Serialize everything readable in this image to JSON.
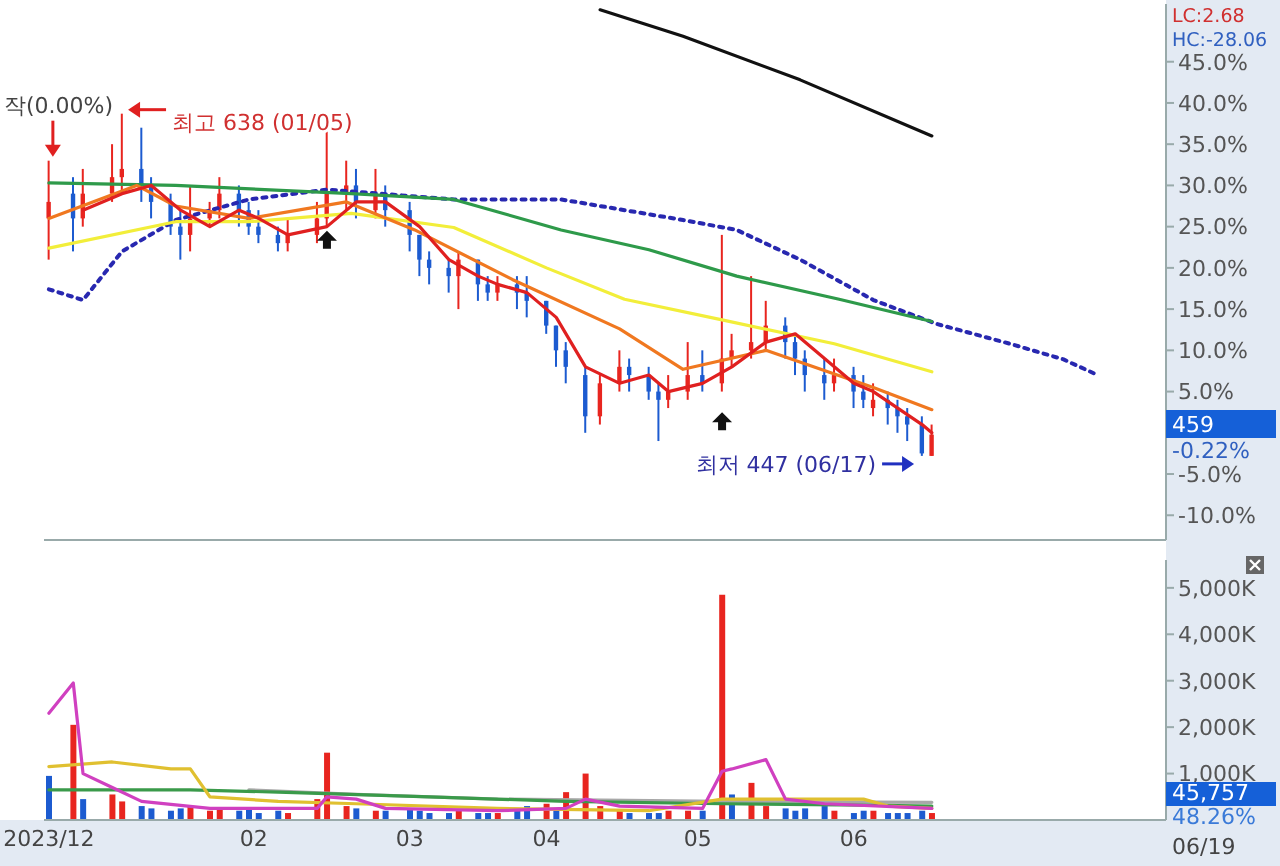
{
  "chart_data": [
    {
      "type": "candlestick",
      "x": [
        "2023-12-21",
        "2023-12-26",
        "2023-12-28",
        "2024-01-03",
        "2024-01-05",
        "2024-01-09",
        "2024-01-11",
        "2024-01-15",
        "2024-01-17",
        "2024-01-19",
        "2024-01-23",
        "2024-01-25",
        "2024-01-29",
        "2024-01-31",
        "2024-02-02",
        "2024-02-06",
        "2024-02-08",
        "2024-02-14",
        "2024-02-16",
        "2024-02-20",
        "2024-02-22",
        "2024-02-26",
        "2024-02-28",
        "2024-03-04",
        "2024-03-06",
        "2024-03-08",
        "2024-03-12",
        "2024-03-14",
        "2024-03-18",
        "2024-03-20",
        "2024-03-22",
        "2024-03-26",
        "2024-03-28",
        "2024-04-01",
        "2024-04-03",
        "2024-04-05",
        "2024-04-09",
        "2024-04-12",
        "2024-04-16",
        "2024-04-18",
        "2024-04-22",
        "2024-04-24",
        "2024-04-26",
        "2024-04-30",
        "2024-05-03",
        "2024-05-07",
        "2024-05-09",
        "2024-05-13",
        "2024-05-16",
        "2024-05-20",
        "2024-05-22",
        "2024-05-24",
        "2024-05-28",
        "2024-05-30",
        "2024-06-03",
        "2024-06-05",
        "2024-06-07",
        "2024-06-10",
        "2024-06-12",
        "2024-06-14",
        "2024-06-17",
        "2024-06-19"
      ],
      "ohlc": [
        [
          26,
          33,
          21,
          28
        ],
        [
          29,
          31,
          22,
          26
        ],
        [
          26,
          32,
          25,
          29
        ],
        [
          29,
          35,
          28,
          31
        ],
        [
          31,
          38.7,
          29,
          32
        ],
        [
          32,
          37,
          28,
          30
        ],
        [
          30,
          31,
          26,
          28
        ],
        [
          28,
          29,
          24,
          25
        ],
        [
          25,
          27,
          21,
          24
        ],
        [
          24,
          30,
          22,
          26
        ],
        [
          26,
          28,
          25,
          27
        ],
        [
          27,
          31,
          26,
          29
        ],
        [
          29,
          30,
          25,
          27
        ],
        [
          27,
          28,
          24,
          25
        ],
        [
          25,
          27,
          23,
          24
        ],
        [
          24,
          25,
          22,
          23
        ],
        [
          23,
          26,
          22,
          24
        ],
        [
          24,
          28,
          23,
          26
        ],
        [
          26,
          38,
          25,
          29
        ],
        [
          29,
          33,
          27,
          30
        ],
        [
          30,
          32,
          26,
          28
        ],
        [
          27,
          32,
          26,
          29
        ],
        [
          29,
          30,
          25,
          27
        ],
        [
          27,
          28,
          22,
          24
        ],
        [
          24,
          24,
          19,
          21
        ],
        [
          21,
          22,
          18,
          20
        ],
        [
          20,
          21,
          17,
          19
        ],
        [
          19,
          22,
          15,
          21
        ],
        [
          21,
          21,
          16,
          18
        ],
        [
          18,
          19,
          16,
          17
        ],
        [
          17,
          19,
          16,
          18
        ],
        [
          18,
          19,
          15,
          17
        ],
        [
          17,
          19,
          14,
          16
        ],
        [
          16,
          16,
          12,
          13
        ],
        [
          13,
          13,
          8,
          10
        ],
        [
          10,
          11,
          6,
          8
        ],
        [
          7,
          8,
          0,
          2
        ],
        [
          2,
          7,
          1,
          6
        ],
        [
          6,
          10,
          5,
          8
        ],
        [
          8,
          9,
          5,
          7
        ],
        [
          7,
          8,
          4,
          5
        ],
        [
          5,
          6,
          -1,
          4
        ],
        [
          4,
          7,
          3,
          5
        ],
        [
          5,
          11,
          4,
          7
        ],
        [
          7,
          10,
          5,
          6
        ],
        [
          6,
          24,
          5,
          9
        ],
        [
          9,
          12,
          8,
          10
        ],
        [
          10,
          19,
          9,
          11
        ],
        [
          11,
          16,
          10,
          13
        ],
        [
          13,
          14,
          9,
          11
        ],
        [
          11,
          12,
          7,
          9
        ],
        [
          9,
          10,
          5,
          7
        ],
        [
          7,
          9,
          4,
          6
        ],
        [
          6,
          9,
          5,
          7
        ],
        [
          7,
          8,
          3,
          5
        ],
        [
          5,
          7,
          3,
          4
        ],
        [
          3,
          6,
          2,
          4
        ],
        [
          4,
          5,
          1,
          3
        ],
        [
          3,
          4,
          0,
          2
        ],
        [
          2,
          3,
          -1,
          1
        ],
        [
          1,
          2,
          -2.8,
          -2.5
        ],
        [
          -2.8,
          1,
          -2.8,
          -0.22
        ]
      ],
      "colors": [
        "#e8251f",
        "#1c5bd0",
        "#e8251f",
        "#e8251f",
        "#e8251f",
        "#1c5bd0",
        "#1c5bd0",
        "#1c5bd0",
        "#1c5bd0",
        "#e8251f",
        "#e8251f",
        "#e8251f",
        "#1c5bd0",
        "#1c5bd0",
        "#1c5bd0",
        "#1c5bd0",
        "#e8251f",
        "#e8251f",
        "#e8251f",
        "#e8251f",
        "#1c5bd0",
        "#e8251f",
        "#1c5bd0",
        "#1c5bd0",
        "#1c5bd0",
        "#1c5bd0",
        "#1c5bd0",
        "#e8251f",
        "#1c5bd0",
        "#1c5bd0",
        "#e8251f",
        "#1c5bd0",
        "#1c5bd0",
        "#1c5bd0",
        "#1c5bd0",
        "#1c5bd0",
        "#1c5bd0",
        "#e8251f",
        "#e8251f",
        "#1c5bd0",
        "#1c5bd0",
        "#1c5bd0",
        "#e8251f",
        "#e8251f",
        "#1c5bd0",
        "#e8251f",
        "#e8251f",
        "#e8251f",
        "#e8251f",
        "#1c5bd0",
        "#1c5bd0",
        "#1c5bd0",
        "#1c5bd0",
        "#e8251f",
        "#1c5bd0",
        "#1c5bd0",
        "#e8251f",
        "#1c5bd0",
        "#1c5bd0",
        "#1c5bd0",
        "#1c5bd0",
        "#e8251f"
      ],
      "series": [
        {
          "type": "line",
          "color": "#2828b0",
          "line_style": "dotted",
          "x": [
            "2023-12-21",
            "2023-12-28",
            "2024-01-05",
            "2024-01-16",
            "2024-01-31",
            "2024-02-16",
            "2024-03-13",
            "2024-04-04",
            "2024-04-29",
            "2024-05-10",
            "2024-05-23",
            "2024-06-07",
            "2024-06-20",
            "2024-07-05",
            "2024-07-16",
            "2024-07-23"
          ],
          "values": [
            17.4,
            16.1,
            22,
            25.8,
            28.3,
            29.5,
            28.3,
            28.3,
            25.8,
            24.6,
            21,
            16.1,
            13.2,
            10.8,
            8.9,
            7
          ]
        },
        {
          "type": "line",
          "color": "#111111",
          "x": [
            "2024-04-12",
            "2024-04-29",
            "2024-05-23",
            "2024-06-19"
          ],
          "values": [
            51.3,
            48.1,
            42.8,
            36
          ]
        },
        {
          "type": "line",
          "color": "#2e9a4a",
          "x": [
            "2023-12-21",
            "2024-01-16",
            "2024-02-21",
            "2024-03-13",
            "2024-04-04",
            "2024-04-22",
            "2024-05-10",
            "2024-05-31",
            "2024-06-19"
          ],
          "values": [
            30.3,
            30,
            29,
            28.3,
            24.6,
            22.2,
            19,
            16.2,
            13.5
          ]
        },
        {
          "type": "line",
          "color": "#f2ee3a",
          "x": [
            "2023-12-21",
            "2024-01-16",
            "2024-01-31",
            "2024-02-21",
            "2024-03-13",
            "2024-04-01",
            "2024-04-17",
            "2024-05-07",
            "2024-05-30",
            "2024-06-19"
          ],
          "values": [
            22.4,
            25.6,
            25.6,
            26.6,
            24.9,
            20,
            16.2,
            13.7,
            10.8,
            7.4
          ]
        },
        {
          "type": "line",
          "color": "#f07820",
          "x": [
            "2023-12-21",
            "2024-01-08",
            "2024-01-16",
            "2024-01-31",
            "2024-02-20",
            "2024-03-05",
            "2024-03-25",
            "2024-04-16",
            "2024-04-29",
            "2024-05-16",
            "2024-06-07",
            "2024-06-19"
          ],
          "values": [
            26,
            30,
            27.5,
            26,
            28,
            24.6,
            18.6,
            12.6,
            7.7,
            10,
            5.5,
            2.8
          ]
        },
        {
          "type": "line",
          "color": "#e02020",
          "x": [
            "2023-12-28",
            "2024-01-05",
            "2024-01-11",
            "2024-01-17",
            "2024-01-23",
            "2024-01-29",
            "2024-02-02",
            "2024-02-08",
            "2024-02-16",
            "2024-02-22",
            "2024-02-28",
            "2024-03-06",
            "2024-03-12",
            "2024-03-18",
            "2024-03-22",
            "2024-03-28",
            "2024-04-03",
            "2024-04-09",
            "2024-04-16",
            "2024-04-22",
            "2024-04-26",
            "2024-05-03",
            "2024-05-09",
            "2024-05-16",
            "2024-05-22",
            "2024-05-28",
            "2024-06-03",
            "2024-06-07",
            "2024-06-12",
            "2024-06-17",
            "2024-06-19"
          ],
          "values": [
            27,
            29,
            30,
            27,
            25,
            27,
            26,
            24,
            25,
            28,
            28,
            25,
            21,
            19,
            18,
            17,
            14,
            8,
            6,
            7,
            5,
            6,
            8,
            11,
            12,
            9,
            6,
            5,
            3,
            1,
            0
          ]
        }
      ],
      "xlim": [
        "2023-12-20",
        "2024-08-06"
      ],
      "ylim": [
        -13,
        52
      ],
      "xticks": [
        {
          "value": "2023-12-21",
          "label": null
        },
        {
          "value": "2024-02-01",
          "label": null
        },
        {
          "value": "2024-03-04",
          "label": null
        },
        {
          "value": "2024-04-01",
          "label": null
        },
        {
          "value": "2024-05-02",
          "label": null
        },
        {
          "value": "2024-06-03",
          "label": null
        }
      ],
      "yticks": [
        {
          "value": -10,
          "label": "-10.0%"
        },
        {
          "value": -5,
          "label": "-5.0%"
        },
        {
          "value": 5,
          "label": "5.0%"
        },
        {
          "value": 10,
          "label": "10.0%"
        },
        {
          "value": 15,
          "label": "15.0%"
        },
        {
          "value": 20,
          "label": "20.0%"
        },
        {
          "value": 25,
          "label": "25.0%"
        },
        {
          "value": 30,
          "label": "30.0%"
        },
        {
          "value": 35,
          "label": "35.0%"
        },
        {
          "value": 40,
          "label": "40.0%"
        },
        {
          "value": 45,
          "label": "45.0%"
        }
      ],
      "tick_labels": "y",
      "annotations": [
        {
          "text": "작(0.00%)",
          "x": "2023-12-21",
          "y": 33
        },
        {
          "text": "최고 638 (01/05)",
          "x": "2024-01-05",
          "y": 38.7
        },
        {
          "text": "최저 447 (06/17)",
          "x": "2024-06-17",
          "y": -2.8
        },
        "LC:2.68",
        "HC:-28.06",
        "459",
        "-0.22%"
      ]
    },
    {
      "type": "bar",
      "x": [
        "2023-12-21",
        "2023-12-26",
        "2023-12-28",
        "2024-01-03",
        "2024-01-05",
        "2024-01-09",
        "2024-01-11",
        "2024-01-15",
        "2024-01-17",
        "2024-01-19",
        "2024-01-23",
        "2024-01-25",
        "2024-01-29",
        "2024-01-31",
        "2024-02-02",
        "2024-02-06",
        "2024-02-08",
        "2024-02-14",
        "2024-02-16",
        "2024-02-20",
        "2024-02-22",
        "2024-02-26",
        "2024-02-28",
        "2024-03-04",
        "2024-03-06",
        "2024-03-08",
        "2024-03-12",
        "2024-03-14",
        "2024-03-18",
        "2024-03-20",
        "2024-03-22",
        "2024-03-26",
        "2024-03-28",
        "2024-04-01",
        "2024-04-03",
        "2024-04-05",
        "2024-04-09",
        "2024-04-12",
        "2024-04-16",
        "2024-04-18",
        "2024-04-22",
        "2024-04-24",
        "2024-04-26",
        "2024-04-30",
        "2024-05-03",
        "2024-05-07",
        "2024-05-09",
        "2024-05-13",
        "2024-05-16",
        "2024-05-20",
        "2024-05-22",
        "2024-05-24",
        "2024-05-28",
        "2024-05-30",
        "2024-06-03",
        "2024-06-05",
        "2024-06-07",
        "2024-06-10",
        "2024-06-12",
        "2024-06-14",
        "2024-06-17",
        "2024-06-19"
      ],
      "values": [
        950,
        2050,
        450,
        550,
        400,
        300,
        250,
        200,
        250,
        300,
        200,
        250,
        200,
        250,
        150,
        200,
        150,
        450,
        1450,
        300,
        250,
        200,
        200,
        250,
        200,
        150,
        150,
        200,
        150,
        150,
        150,
        200,
        300,
        350,
        200,
        600,
        1000,
        300,
        200,
        150,
        150,
        150,
        200,
        200,
        200,
        4850,
        550,
        800,
        300,
        250,
        200,
        250,
        300,
        200,
        150,
        200,
        200,
        150,
        150,
        150,
        200,
        150
      ],
      "colors": [
        "#1c5bd0",
        "#e8251f",
        "#1c5bd0",
        "#e8251f",
        "#e8251f",
        "#1c5bd0",
        "#1c5bd0",
        "#1c5bd0",
        "#1c5bd0",
        "#e8251f",
        "#e8251f",
        "#e8251f",
        "#1c5bd0",
        "#1c5bd0",
        "#1c5bd0",
        "#1c5bd0",
        "#e8251f",
        "#e8251f",
        "#e8251f",
        "#e8251f",
        "#1c5bd0",
        "#e8251f",
        "#1c5bd0",
        "#1c5bd0",
        "#1c5bd0",
        "#1c5bd0",
        "#1c5bd0",
        "#e8251f",
        "#1c5bd0",
        "#1c5bd0",
        "#e8251f",
        "#1c5bd0",
        "#1c5bd0",
        "#e8251f",
        "#1c5bd0",
        "#e8251f",
        "#e8251f",
        "#e8251f",
        "#e8251f",
        "#1c5bd0",
        "#1c5bd0",
        "#1c5bd0",
        "#e8251f",
        "#e8251f",
        "#1c5bd0",
        "#e8251f",
        "#1c5bd0",
        "#e8251f",
        "#e8251f",
        "#1c5bd0",
        "#1c5bd0",
        "#1c5bd0",
        "#1c5bd0",
        "#e8251f",
        "#1c5bd0",
        "#1c5bd0",
        "#e8251f",
        "#1c5bd0",
        "#1c5bd0",
        "#1c5bd0",
        "#1c5bd0",
        "#e8251f"
      ],
      "series": [
        {
          "type": "line",
          "color": "#a8a8a8",
          "x": [
            "2024-01-31",
            "2024-02-22",
            "2024-03-22",
            "2024-05-07",
            "2024-06-19"
          ],
          "values": [
            650,
            550,
            450,
            400,
            380
          ]
        },
        {
          "type": "line",
          "color": "#3a9a4a",
          "x": [
            "2023-12-21",
            "2024-01-19",
            "2024-02-06",
            "2024-03-08",
            "2024-04-05",
            "2024-05-07",
            "2024-06-05",
            "2024-06-19"
          ],
          "values": [
            650,
            650,
            600,
            500,
            400,
            350,
            320,
            300
          ]
        },
        {
          "type": "line",
          "color": "#e0c030",
          "x": [
            "2023-12-21",
            "2024-01-03",
            "2024-01-15",
            "2024-01-19",
            "2024-01-23",
            "2024-02-06",
            "2024-02-22",
            "2024-03-22",
            "2024-04-22",
            "2024-05-07",
            "2024-05-16",
            "2024-06-05",
            "2024-06-10",
            "2024-06-19"
          ],
          "values": [
            1150,
            1250,
            1100,
            1100,
            500,
            400,
            350,
            250,
            200,
            450,
            450,
            450,
            300,
            250
          ]
        },
        {
          "type": "line",
          "color": "#d040c0",
          "x": [
            "2023-12-21",
            "2023-12-26",
            "2023-12-28",
            "2024-01-03",
            "2024-01-09",
            "2024-01-23",
            "2024-02-14",
            "2024-02-16",
            "2024-02-22",
            "2024-02-28",
            "2024-03-22",
            "2024-04-05",
            "2024-04-09",
            "2024-04-16",
            "2024-05-03",
            "2024-05-07",
            "2024-05-09",
            "2024-05-16",
            "2024-05-20",
            "2024-05-28",
            "2024-06-19"
          ],
          "values": [
            2300,
            2950,
            1000,
            700,
            400,
            250,
            250,
            500,
            450,
            250,
            200,
            250,
            450,
            300,
            250,
            1050,
            1100,
            1300,
            450,
            350,
            250
          ]
        }
      ],
      "xlim": [
        "2023-12-20",
        "2024-08-06"
      ],
      "ylim": [
        0,
        5600
      ],
      "xticks": [
        {
          "value": "2023-12-21",
          "label": "2023/12"
        },
        {
          "value": "2024-02-01",
          "label": "02"
        },
        {
          "value": "2024-03-04",
          "label": "03"
        },
        {
          "value": "2024-04-01",
          "label": "04"
        },
        {
          "value": "2024-05-02",
          "label": "05"
        },
        {
          "value": "2024-06-03",
          "label": "06"
        }
      ],
      "yticks": [
        {
          "value": 1000,
          "label": "1,000K"
        },
        {
          "value": 2000,
          "label": "2,000K"
        },
        {
          "value": 3000,
          "label": "3,000K"
        },
        {
          "value": 4000,
          "label": "4,000K"
        },
        {
          "value": 5000,
          "label": "5,000K"
        }
      ],
      "annotations": [
        "45,757",
        "48.26%",
        "06/19"
      ]
    }
  ]
}
